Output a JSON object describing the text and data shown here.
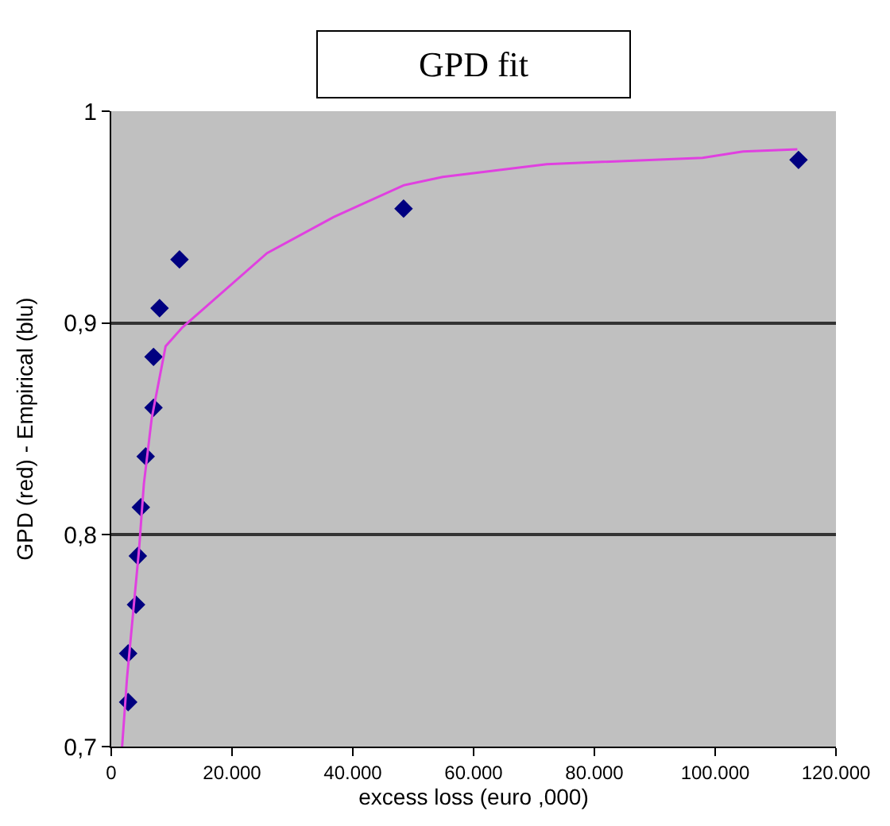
{
  "chart_data": {
    "type": "scatter",
    "title": "GPD fit",
    "xlabel": "excess loss (euro ,000)",
    "ylabel": "GPD (red) - Empirical (blu)",
    "xlim": [
      0,
      120000
    ],
    "xticks": [
      {
        "value": 0,
        "label": "0"
      },
      {
        "value": 20000,
        "label": "20.000"
      },
      {
        "value": 40000,
        "label": "40.000"
      },
      {
        "value": 60000,
        "label": "60.000"
      },
      {
        "value": 80000,
        "label": "80.000"
      },
      {
        "value": 100000,
        "label": "100.000"
      },
      {
        "value": 120000,
        "label": "120.000"
      }
    ],
    "ylim": [
      0.7,
      1
    ],
    "yticks": [
      {
        "value": 0.7,
        "label": "0,7"
      },
      {
        "value": 0.8,
        "label": "0,8"
      },
      {
        "value": 0.9,
        "label": "0,9"
      },
      {
        "value": 1,
        "label": "1"
      }
    ],
    "grid": "y",
    "series": [
      {
        "color": "#000080",
        "marker": "diamond",
        "x": [
          2800,
          2800,
          4100,
          4400,
          4900,
          5700,
          7000,
          7000,
          8000,
          11300,
          48400,
          113800
        ],
        "values": [
          0.721,
          0.744,
          0.767,
          0.79,
          0.813,
          0.837,
          0.86,
          0.884,
          0.907,
          0.93,
          0.954,
          0.977
        ]
      },
      {
        "type": "line",
        "color": "#e040e0",
        "marker": "none",
        "x": [
          1800,
          2600,
          4600,
          5400,
          6700,
          9000,
          11800,
          25800,
          36800,
          48400,
          54900,
          72100,
          97900,
          104600,
          113600
        ],
        "values": [
          0.7,
          0.732,
          0.793,
          0.824,
          0.855,
          0.889,
          0.898,
          0.933,
          0.95,
          0.965,
          0.969,
          0.975,
          0.978,
          0.981,
          0.982
        ]
      }
    ]
  }
}
